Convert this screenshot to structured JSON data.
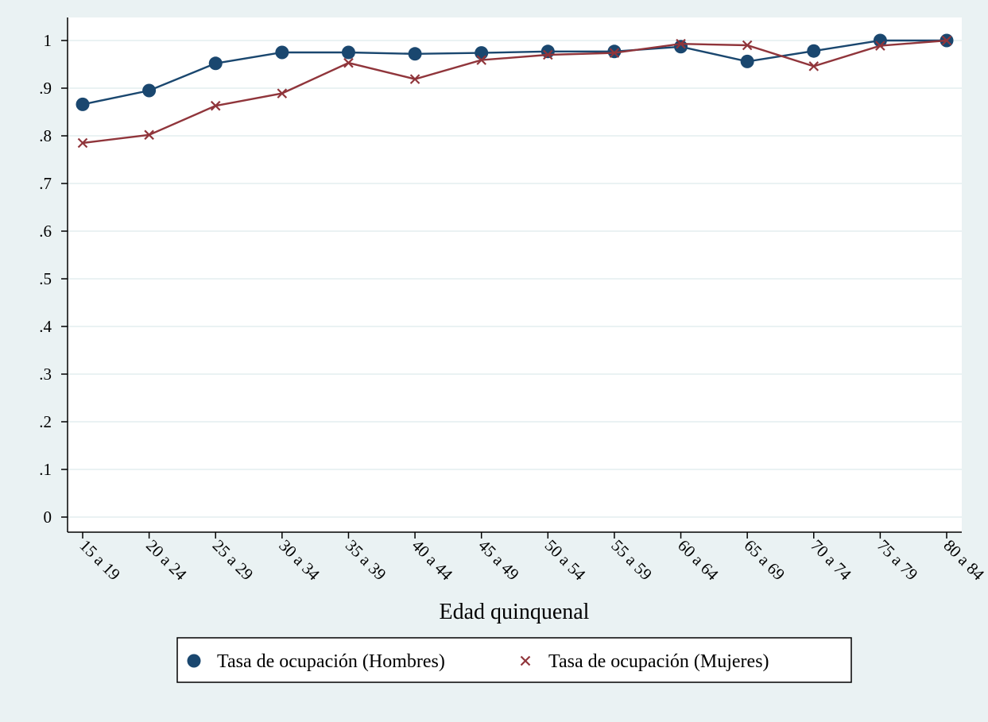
{
  "chart_data": {
    "type": "line",
    "title": "",
    "xlabel": "Edad quinquenal",
    "ylabel": "",
    "categories": [
      "15 a 19",
      "20 a 24",
      "25 a 29",
      "30 a 34",
      "35 a 39",
      "40 a 44",
      "45 a 49",
      "50 a 54",
      "55 a 59",
      "60 a 64",
      "65 a 69",
      "70 a 74",
      "75 a 79",
      "80 a 84"
    ],
    "y_ticks": [
      "0",
      ".1",
      ".2",
      ".3",
      ".4",
      ".5",
      ".6",
      ".7",
      ".8",
      ".9",
      "1"
    ],
    "ylim": [
      0,
      1
    ],
    "grid": true,
    "legend_position": "bottom",
    "series": [
      {
        "name": "Tasa de ocupación (Hombres)",
        "marker": "circle",
        "color": "#1a476f",
        "values": [
          0.866,
          0.895,
          0.952,
          0.975,
          0.975,
          0.972,
          0.974,
          0.977,
          0.977,
          0.987,
          0.956,
          0.978,
          1.0,
          1.0
        ]
      },
      {
        "name": "Tasa de ocupación (Mujeres)",
        "marker": "x",
        "color": "#90353b",
        "values": [
          0.785,
          0.802,
          0.863,
          0.889,
          0.953,
          0.919,
          0.959,
          0.97,
          0.974,
          0.993,
          0.99,
          0.946,
          0.989,
          1.0
        ]
      }
    ]
  }
}
